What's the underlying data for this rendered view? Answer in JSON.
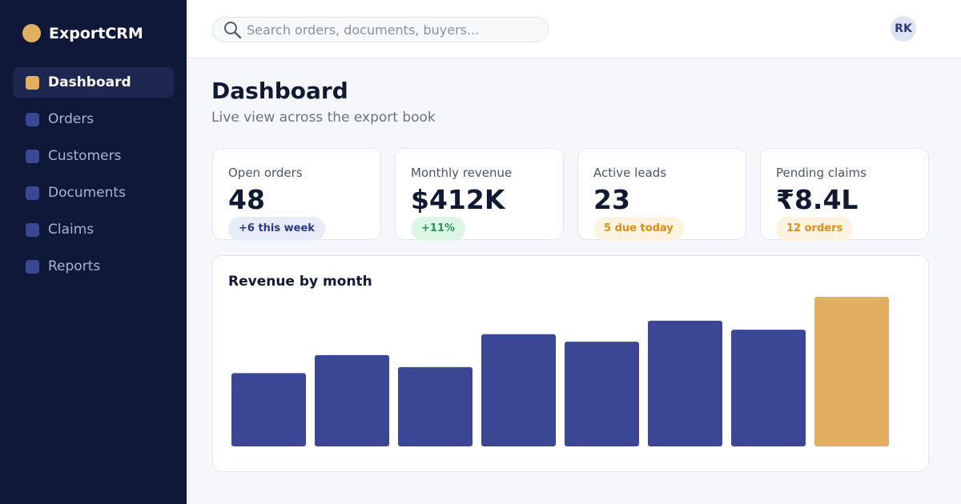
{
  "sidebar": {
    "brand": "ExportCRM",
    "nav": [
      "Dashboard",
      "Orders",
      "Customers",
      "Documents",
      "Claims",
      "Reports"
    ]
  },
  "topbar": {
    "search_placeholder": "Search orders, documents, buyers...",
    "avatar": "RK"
  },
  "page": {
    "title": "Dashboard",
    "subtitle": "Live view across the export book"
  },
  "kpis": [
    {
      "label": "Open orders",
      "value": "48",
      "badge": "+6 this week"
    },
    {
      "label": "Monthly revenue",
      "value": "$412K",
      "badge": "+11%"
    },
    {
      "label": "Active leads",
      "value": "23",
      "badge": "5 due today"
    },
    {
      "label": "Pending claims",
      "value": "₹8.4L",
      "badge": "12 orders"
    }
  ],
  "chart_data": {
    "type": "bar",
    "title": "Revenue by month",
    "values": [
      49,
      61,
      53,
      75,
      70,
      84,
      78,
      100
    ],
    "colors": [
      "#3b4795",
      "#3b4795",
      "#3b4795",
      "#3b4795",
      "#3b4795",
      "#3b4795",
      "#3b4795",
      "#e2ae5f"
    ],
    "ylim": [
      0,
      100
    ]
  }
}
